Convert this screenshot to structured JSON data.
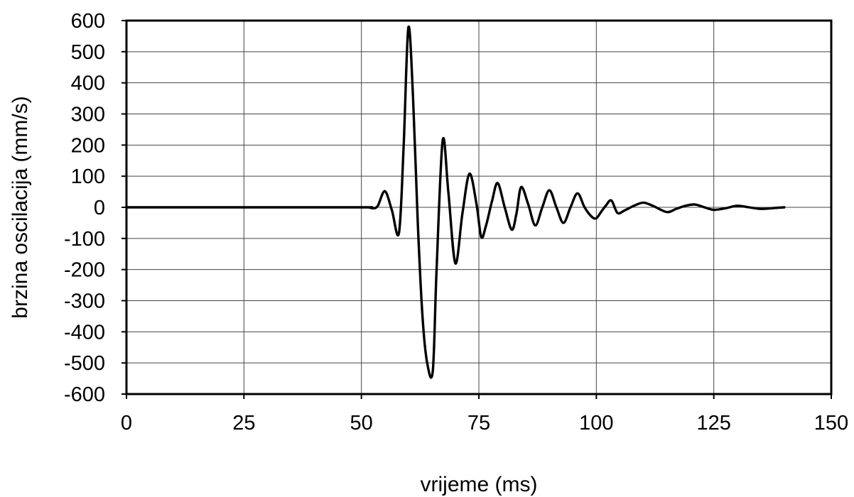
{
  "chart_data": {
    "type": "line",
    "xlabel": "vrijeme (ms)",
    "ylabel": "brzina oscilacija (mm/s)",
    "xlim": [
      0,
      150
    ],
    "ylim": [
      -600,
      600
    ],
    "xticks": [
      0,
      25,
      50,
      75,
      100,
      125,
      150
    ],
    "yticks": [
      600,
      500,
      400,
      300,
      200,
      100,
      0,
      -100,
      -200,
      -300,
      -400,
      -500,
      -600
    ],
    "grid": true,
    "series_color": "#000000",
    "series": [
      {
        "x": [
          0,
          25,
          50,
          51.5,
          52.5,
          53.5,
          55,
          56.5,
          58,
          59,
          60,
          61,
          62,
          63,
          64,
          65.2,
          66,
          67.3,
          68.5,
          70,
          71.5,
          73,
          74.5,
          75.5,
          76.5,
          77.8,
          79,
          80.5,
          82,
          83,
          84,
          85.5,
          87,
          88.5,
          90,
          91.5,
          93,
          94.5,
          96,
          97.5,
          99,
          100,
          101,
          102,
          103.2,
          104.5,
          106,
          108,
          110,
          112,
          115,
          117,
          119,
          121,
          123,
          125,
          127.5,
          130,
          132.5,
          135,
          138,
          140
        ],
        "y": [
          0,
          0,
          0,
          0,
          -3,
          5,
          52,
          -10,
          -82,
          200,
          578,
          350,
          -50,
          -350,
          -500,
          -525,
          -200,
          215,
          50,
          -180,
          -20,
          108,
          10,
          -95,
          -60,
          20,
          78,
          0,
          -72,
          -20,
          65,
          10,
          -58,
          0,
          55,
          0,
          -50,
          0,
          45,
          0,
          -30,
          -35,
          -15,
          5,
          22,
          -18,
          -10,
          5,
          15,
          5,
          -15,
          -5,
          5,
          9,
          0,
          -8,
          -3,
          5,
          0,
          -5,
          -2,
          0
        ]
      }
    ]
  }
}
